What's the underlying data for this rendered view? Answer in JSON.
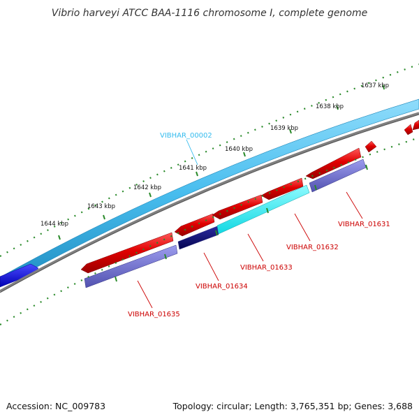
{
  "title": "Vibrio harveyi ATCC BAA-1116 chromosome I, complete genome",
  "footer": {
    "accession": "Accession: NC_009783",
    "summary": "Topology: circular; Length: 3,765,351 bp; Genes: 3,688"
  },
  "ticks": [
    {
      "label": "1637 kbp"
    },
    {
      "label": "1638 kbp"
    },
    {
      "label": "1639 kbp"
    },
    {
      "label": "1640 kbp"
    },
    {
      "label": "1641 kbp"
    },
    {
      "label": "1642 kbp"
    },
    {
      "label": "1643 kbp"
    },
    {
      "label": "1644 kbp"
    }
  ],
  "gene_labels": [
    {
      "text": "VIBHAR_00002",
      "color": "#33bbee"
    },
    {
      "text": "VIBHAR_01631",
      "color": "#cc0000"
    },
    {
      "text": "VIBHAR_01632",
      "color": "#cc0000"
    },
    {
      "text": "VIBHAR_01633",
      "color": "#cc0000"
    },
    {
      "text": "VIBHAR_01634",
      "color": "#cc0000"
    },
    {
      "text": "VIBHAR_01635",
      "color": "#cc0000"
    }
  ],
  "colors": {
    "forward_track": "#55c3f0",
    "backbone": "#808080",
    "cds_red": "#e00000",
    "cds_purple": "#7070cc",
    "cds_cyan": "#22e8ee",
    "cds_navy": "#0a0a78",
    "cds_blue": "#1a1ae0",
    "tick_green": "#2a8a2a"
  }
}
